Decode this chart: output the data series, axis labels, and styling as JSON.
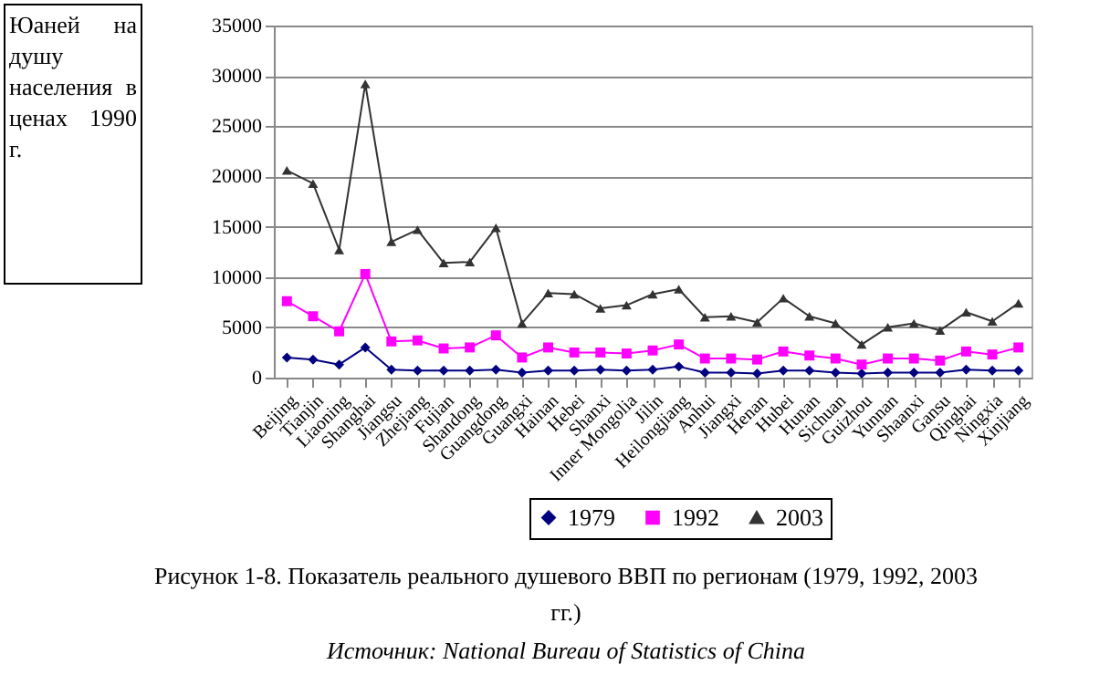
{
  "chart_data": {
    "type": "line",
    "title": "Рисунок 1-8. Показатель реального душевого ВВП по регионам (1979, 1992, 2003 гг.)",
    "ylabel": "Юаней на душу населения в ценах 1990 г.",
    "annotations": [
      "Источник: National Bureau of Statistics of China"
    ],
    "categories": [
      "Beijing",
      "Tianjin",
      "Liaoning",
      "Shanghai",
      "Jiangsu",
      "Zhejiang",
      "Fujian",
      "Shandong",
      "Guangdong",
      "Guangxi",
      "Hainan",
      "Hebei",
      "Shanxi",
      "Inner Mongolia",
      "Jilin",
      "Heilongjiang",
      "Anhui",
      "Jiangxi",
      "Henan",
      "Hubei",
      "Hunan",
      "Sichuan",
      "Guizhou",
      "Yunnan",
      "Shaanxi",
      "Gansu",
      "Qinghai",
      "Ningxia",
      "Xinjiang"
    ],
    "series": [
      {
        "name": "1979",
        "color": "#000080",
        "marker": "diamond",
        "values": [
          2000,
          1800,
          1300,
          3000,
          800,
          700,
          700,
          700,
          800,
          500,
          700,
          700,
          800,
          700,
          800,
          1100,
          500,
          500,
          400,
          700,
          700,
          500,
          400,
          500,
          500,
          500,
          800,
          700,
          700
        ]
      },
      {
        "name": "1992",
        "color": "#ff00ff",
        "marker": "square",
        "values": [
          7600,
          6100,
          4600,
          10300,
          3600,
          3700,
          2900,
          3000,
          4200,
          2000,
          3000,
          2500,
          2500,
          2400,
          2700,
          3300,
          1900,
          1900,
          1800,
          2600,
          2200,
          1900,
          1300,
          1900,
          1900,
          1700,
          2600,
          2300,
          3000
        ]
      },
      {
        "name": "2003",
        "color": "#333333",
        "marker": "triangle",
        "values": [
          20600,
          19300,
          12700,
          29200,
          13500,
          14700,
          11400,
          11500,
          14900,
          5400,
          8400,
          8300,
          6900,
          7200,
          8300,
          8800,
          6000,
          6100,
          5500,
          7900,
          6100,
          5400,
          3300,
          5000,
          5400,
          4700,
          6500,
          5600,
          7400
        ]
      }
    ],
    "ylim": [
      0,
      35000
    ],
    "yticks": [
      0,
      5000,
      10000,
      15000,
      20000,
      25000,
      30000,
      35000
    ],
    "grid": "y",
    "legend": "bottom",
    "line_style": "solid"
  }
}
